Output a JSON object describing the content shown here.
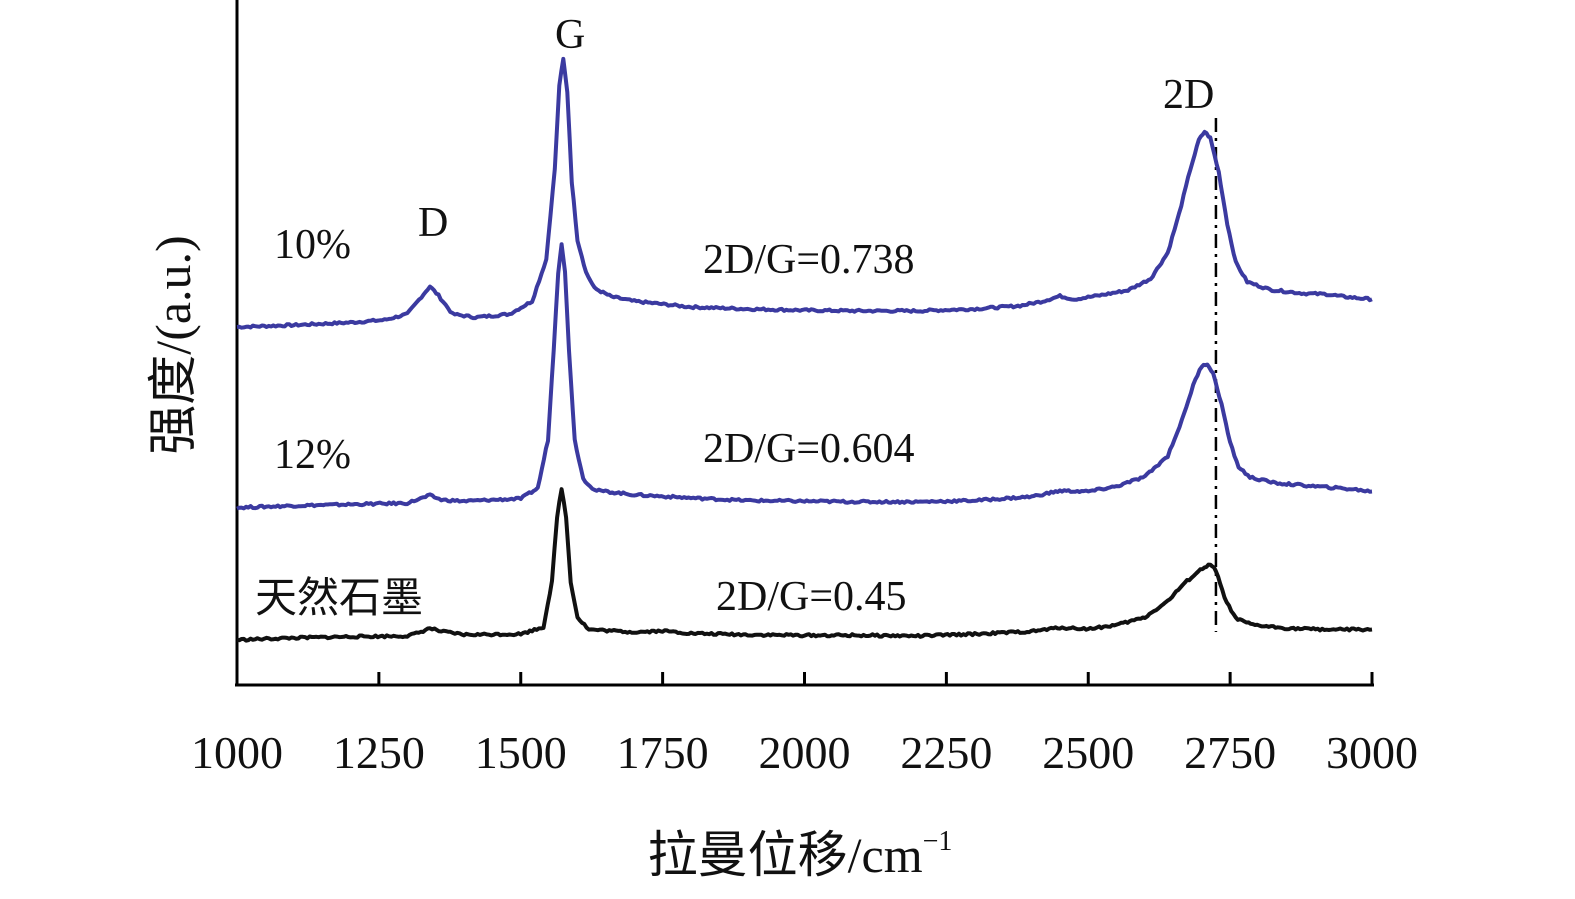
{
  "chart_data": {
    "type": "line",
    "title": "",
    "xlabel": "拉曼位移/cm",
    "xlabel_sup": "−1",
    "ylabel": "强度/(a.u.)",
    "xlim": [
      1000,
      3000
    ],
    "xticks": [
      1000,
      1250,
      1500,
      1750,
      2000,
      2250,
      2500,
      2750,
      3000
    ],
    "ylim": [
      0,
      100
    ],
    "grid": false,
    "legend": "none",
    "series": [
      {
        "name": "10%",
        "color": "#3b3aa0",
        "ratio_label": "2D/G=0.738",
        "points": [
          [
            1000,
            55.5
          ],
          [
            1100,
            55.8
          ],
          [
            1200,
            56.2
          ],
          [
            1260,
            56.6
          ],
          [
            1300,
            57.5
          ],
          [
            1325,
            60.2
          ],
          [
            1340,
            61.8
          ],
          [
            1355,
            60.4
          ],
          [
            1380,
            57.5
          ],
          [
            1420,
            57.0
          ],
          [
            1480,
            57.5
          ],
          [
            1520,
            59.5
          ],
          [
            1545,
            66
          ],
          [
            1560,
            80
          ],
          [
            1568,
            93
          ],
          [
            1575,
            97
          ],
          [
            1582,
            92
          ],
          [
            1590,
            78
          ],
          [
            1600,
            69
          ],
          [
            1615,
            64
          ],
          [
            1630,
            61.5
          ],
          [
            1660,
            60.2
          ],
          [
            1700,
            59.5
          ],
          [
            1800,
            58.6
          ],
          [
            1900,
            58.3
          ],
          [
            2000,
            58.1
          ],
          [
            2100,
            58.0
          ],
          [
            2200,
            58.0
          ],
          [
            2300,
            58.3
          ],
          [
            2380,
            58.8
          ],
          [
            2420,
            59.5
          ],
          [
            2450,
            60.3
          ],
          [
            2475,
            59.8
          ],
          [
            2520,
            60.4
          ],
          [
            2570,
            61.2
          ],
          [
            2610,
            63.0
          ],
          [
            2640,
            67.0
          ],
          [
            2660,
            73.0
          ],
          [
            2680,
            80.0
          ],
          [
            2695,
            84.5
          ],
          [
            2705,
            85.8
          ],
          [
            2715,
            84.8
          ],
          [
            2730,
            79.5
          ],
          [
            2745,
            71.5
          ],
          [
            2760,
            65.5
          ],
          [
            2780,
            62.5
          ],
          [
            2820,
            61.3
          ],
          [
            2880,
            60.7
          ],
          [
            2920,
            60.6
          ],
          [
            2950,
            60.2
          ],
          [
            3000,
            59.8
          ]
        ]
      },
      {
        "name": "12%",
        "color": "#3b3aa0",
        "ratio_label": "2D/G=0.604",
        "points": [
          [
            1000,
            27.5
          ],
          [
            1100,
            27.8
          ],
          [
            1200,
            28.0
          ],
          [
            1300,
            28.2
          ],
          [
            1320,
            28.8
          ],
          [
            1340,
            29.4
          ],
          [
            1360,
            28.7
          ],
          [
            1400,
            28.5
          ],
          [
            1500,
            28.9
          ],
          [
            1530,
            30.5
          ],
          [
            1548,
            38
          ],
          [
            1558,
            52
          ],
          [
            1566,
            64
          ],
          [
            1572,
            68.5
          ],
          [
            1578,
            64
          ],
          [
            1585,
            52
          ],
          [
            1595,
            38
          ],
          [
            1610,
            32
          ],
          [
            1630,
            30.2
          ],
          [
            1700,
            29.5
          ],
          [
            1800,
            29.0
          ],
          [
            1900,
            28.6
          ],
          [
            2000,
            28.5
          ],
          [
            2100,
            28.4
          ],
          [
            2200,
            28.4
          ],
          [
            2300,
            28.6
          ],
          [
            2400,
            29.2
          ],
          [
            2450,
            30.1
          ],
          [
            2500,
            30.0
          ],
          [
            2550,
            30.8
          ],
          [
            2600,
            32.3
          ],
          [
            2640,
            35.5
          ],
          [
            2665,
            41
          ],
          [
            2685,
            46.5
          ],
          [
            2700,
            49.5
          ],
          [
            2710,
            49.8
          ],
          [
            2720,
            48.3
          ],
          [
            2735,
            43.5
          ],
          [
            2750,
            37.5
          ],
          [
            2765,
            33.8
          ],
          [
            2785,
            32.2
          ],
          [
            2830,
            31.3
          ],
          [
            2900,
            30.8
          ],
          [
            2960,
            30.4
          ],
          [
            3000,
            30.0
          ]
        ]
      },
      {
        "name": "天然石墨",
        "color": "#111111",
        "ratio_label": "2D/G=0.45",
        "points": [
          [
            1000,
            7.0
          ],
          [
            1100,
            7.3
          ],
          [
            1200,
            7.5
          ],
          [
            1300,
            7.6
          ],
          [
            1320,
            8.1
          ],
          [
            1340,
            8.8
          ],
          [
            1360,
            8.3
          ],
          [
            1400,
            7.8
          ],
          [
            1500,
            7.9
          ],
          [
            1540,
            9.0
          ],
          [
            1555,
            16
          ],
          [
            1564,
            26
          ],
          [
            1572,
            30.5
          ],
          [
            1580,
            26
          ],
          [
            1588,
            16
          ],
          [
            1600,
            10.5
          ],
          [
            1620,
            8.6
          ],
          [
            1700,
            8.2
          ],
          [
            1750,
            8.4
          ],
          [
            1800,
            8.0
          ],
          [
            1900,
            7.8
          ],
          [
            2000,
            7.7
          ],
          [
            2100,
            7.7
          ],
          [
            2200,
            7.6
          ],
          [
            2300,
            7.9
          ],
          [
            2400,
            8.3
          ],
          [
            2450,
            8.9
          ],
          [
            2500,
            8.7
          ],
          [
            2550,
            9.3
          ],
          [
            2600,
            10.5
          ],
          [
            2640,
            13.0
          ],
          [
            2670,
            15.8
          ],
          [
            2690,
            17.3
          ],
          [
            2705,
            18.3
          ],
          [
            2715,
            18.6
          ],
          [
            2725,
            17.8
          ],
          [
            2740,
            13.5
          ],
          [
            2760,
            10.3
          ],
          [
            2790,
            9.3
          ],
          [
            2850,
            8.8
          ],
          [
            2920,
            8.6
          ],
          [
            3000,
            8.6
          ]
        ]
      }
    ],
    "peak_labels": [
      "D",
      "G",
      "2D"
    ],
    "reference_line": {
      "x": 2725,
      "style": "dash-dot"
    }
  }
}
